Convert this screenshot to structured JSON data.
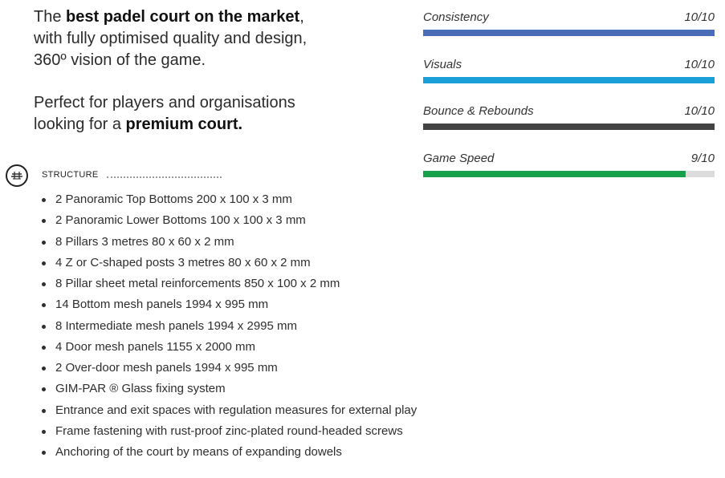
{
  "intro": {
    "line1_prefix": "The ",
    "line1_bold": "best padel court on the market",
    "line1_suffix": ",",
    "line2": "with fully optimised quality and design,",
    "line3": "360º vision of the game.",
    "p2_line1": "Perfect for players and organisations",
    "p2_prefix": "looking for a ",
    "p2_bold": "premium court."
  },
  "ratings": [
    {
      "label": "Consistency",
      "score": "10/10",
      "value": 1.0,
      "color": "#4b6db5"
    },
    {
      "label": "Visuals",
      "score": "10/10",
      "value": 1.0,
      "color": "#1a9fd8"
    },
    {
      "label": "Bounce & Rebounds",
      "score": "10/10",
      "value": 1.0,
      "color": "#434343"
    },
    {
      "label": "Game Speed",
      "score": "9/10",
      "value": 0.9,
      "color": "#16a04c"
    }
  ],
  "structure": {
    "title": "STRUCTURE",
    "icon": "structure-icon",
    "items": [
      "2 Panoramic Top Bottoms 200 x 100 x 3 mm",
      "2 Panoramic Lower Bottoms 100 x 100 x 3 mm",
      "8 Pillars 3 metres 80 x 60 x 2 mm",
      "4 Z or C-shaped posts 3 metres 80 x 60 x 2 mm",
      "8 Pillar sheet metal reinforcements 850 x 100 x 2 mm",
      "14 Bottom mesh panels 1994 x 995 mm",
      "8 Intermediate mesh panels 1994 x 2995 mm",
      "4 Door mesh panels 1155 x 2000 mm",
      "2 Over-door mesh panels 1994 x 995 mm",
      "GIM-PAR ® Glass fixing system",
      "Entrance and exit spaces with regulation measures for external play",
      "Frame fastening with rust-proof zinc-plated round-headed screws",
      "Anchoring of the court by means of expanding dowels"
    ]
  }
}
